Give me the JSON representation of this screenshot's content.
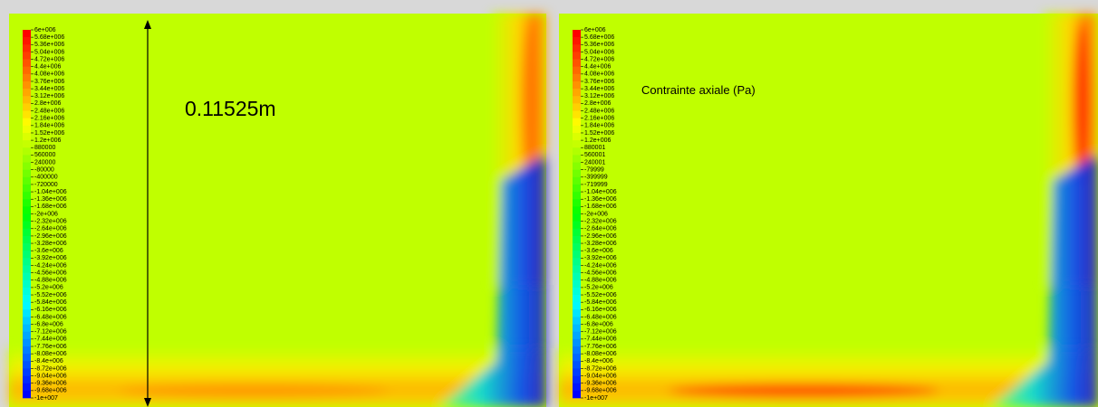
{
  "panels": [
    {
      "annotation": "0.11525m",
      "legend_labels": [
        "6e+006",
        "5.68e+006",
        "5.36e+006",
        "5.04e+006",
        "4.72e+006",
        "4.4e+006",
        "4.08e+006",
        "3.76e+006",
        "3.44e+006",
        "3.12e+006",
        "2.8e+006",
        "2.48e+006",
        "2.16e+006",
        "1.84e+006",
        "1.52e+006",
        "1.2e+006",
        "880000",
        "560000",
        "240000",
        "-80000",
        "-400000",
        "-720000",
        "-1.04e+006",
        "-1.36e+006",
        "-1.68e+006",
        "-2e+006",
        "-2.32e+006",
        "-2.64e+006",
        "-2.96e+006",
        "-3.28e+006",
        "-3.6e+006",
        "-3.92e+006",
        "-4.24e+006",
        "-4.56e+006",
        "-4.88e+006",
        "-5.2e+006",
        "-5.52e+006",
        "-5.84e+006",
        "-6.16e+006",
        "-6.48e+006",
        "-6.8e+006",
        "-7.12e+006",
        "-7.44e+006",
        "-7.76e+006",
        "-8.08e+006",
        "-8.4e+006",
        "-8.72e+006",
        "-9.04e+006",
        "-9.36e+006",
        "-9.68e+006",
        "-1e+007"
      ]
    },
    {
      "annotation": "Contrainte axiale (Pa)",
      "legend_labels": [
        "6e+006",
        "5.68e+006",
        "5.36e+006",
        "5.04e+006",
        "4.72e+006",
        "4.4e+006",
        "4.08e+006",
        "3.76e+006",
        "3.44e+006",
        "3.12e+006",
        "2.8e+006",
        "2.48e+006",
        "2.16e+006",
        "1.84e+006",
        "1.52e+006",
        "1.2e+006",
        "880001",
        "560001",
        "240001",
        "-79999",
        "-399999",
        "-719999",
        "-1.04e+006",
        "-1.36e+006",
        "-1.68e+006",
        "-2e+006",
        "-2.32e+006",
        "-2.64e+006",
        "-2.96e+006",
        "-3.28e+006",
        "-3.6e+006",
        "-3.92e+006",
        "-4.24e+006",
        "-4.56e+006",
        "-4.88e+006",
        "-5.2e+006",
        "-5.52e+006",
        "-5.84e+006",
        "-6.16e+006",
        "-6.48e+006",
        "-6.8e+006",
        "-7.12e+006",
        "-7.44e+006",
        "-7.76e+006",
        "-8.08e+006",
        "-8.4e+006",
        "-8.72e+006",
        "-9.04e+006",
        "-9.36e+006",
        "-9.68e+006",
        "-1e+007"
      ]
    }
  ]
}
